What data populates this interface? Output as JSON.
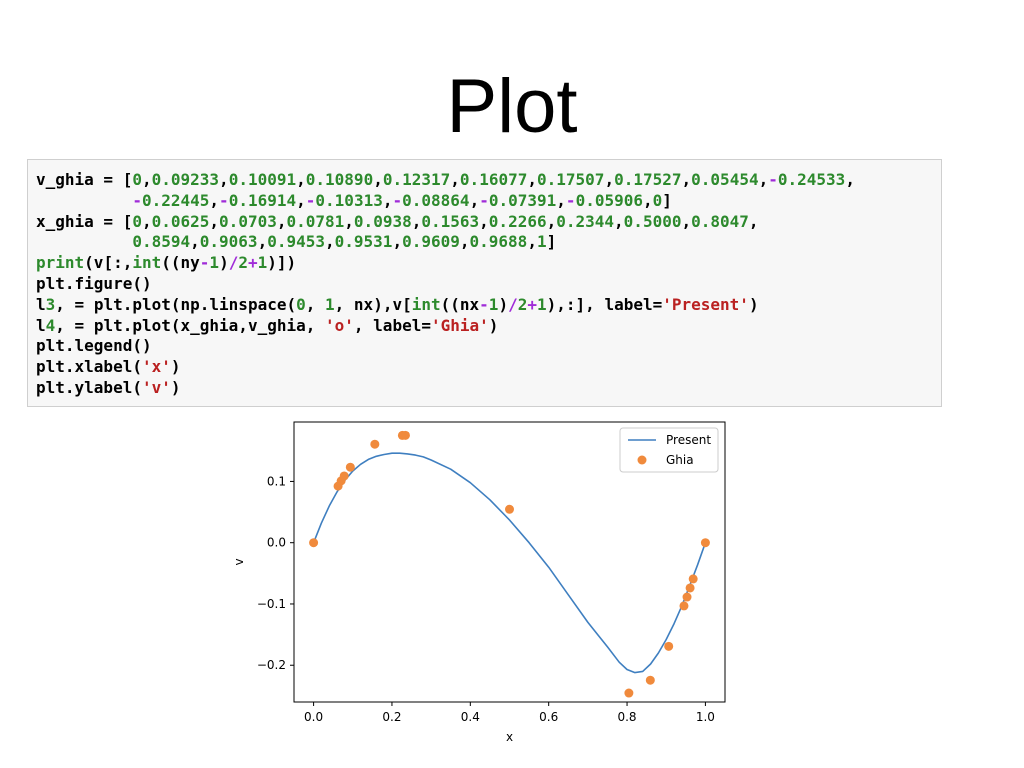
{
  "slide": {
    "title": "Plot"
  },
  "code": {
    "lines": [
      "v_ghia = [0,0.09233,0.10091,0.10890,0.12317,0.16077,0.17507,0.17527,0.05454,-0.24533,",
      "          -0.22445,-0.16914,-0.10313,-0.08864,-0.07391,-0.05906,0]",
      "x_ghia = [0,0.0625,0.0703,0.0781,0.0938,0.1563,0.2266,0.2344,0.5000,0.8047,",
      "          0.8594,0.9063,0.9453,0.9531,0.9609,0.9688,1]",
      "print(v[:,int((ny-1)/2+1)])",
      "plt.figure()",
      "l3, = plt.plot(np.linspace(0, 1, nx),v[int((nx-1)/2+1),:], label='Present')",
      "l4, = plt.plot(x_ghia,v_ghia, 'o', label='Ghia')",
      "plt.legend()",
      "plt.xlabel('x')",
      "plt.ylabel('v')"
    ]
  },
  "chart_data": {
    "type": "line",
    "xlabel": "x",
    "ylabel": "v",
    "xlim": [
      -0.05,
      1.05
    ],
    "ylim": [
      -0.26,
      0.197
    ],
    "xticks": [
      0.0,
      0.2,
      0.4,
      0.6,
      0.8,
      1.0
    ],
    "xtick_labels": [
      "0.0",
      "0.2",
      "0.4",
      "0.6",
      "0.8",
      "1.0"
    ],
    "yticks": [
      -0.2,
      -0.1,
      0.0,
      0.1
    ],
    "ytick_labels": [
      "−0.2",
      "−0.1",
      "0.0",
      "0.1"
    ],
    "grid": false,
    "legend_position": "top-right",
    "series": [
      {
        "name": "Present",
        "kind": "line",
        "color": "#3f7fc0",
        "x": [
          0.0,
          0.02,
          0.04,
          0.06,
          0.08,
          0.1,
          0.12,
          0.14,
          0.16,
          0.18,
          0.2,
          0.22,
          0.24,
          0.26,
          0.28,
          0.3,
          0.35,
          0.4,
          0.45,
          0.5,
          0.55,
          0.6,
          0.65,
          0.7,
          0.75,
          0.78,
          0.8,
          0.82,
          0.84,
          0.86,
          0.88,
          0.9,
          0.92,
          0.94,
          0.96,
          0.98,
          1.0
        ],
        "y": [
          0.0,
          0.032,
          0.06,
          0.083,
          0.102,
          0.117,
          0.128,
          0.136,
          0.141,
          0.144,
          0.146,
          0.146,
          0.145,
          0.143,
          0.14,
          0.135,
          0.12,
          0.098,
          0.07,
          0.037,
          0.0,
          -0.04,
          -0.085,
          -0.13,
          -0.17,
          -0.195,
          -0.207,
          -0.212,
          -0.21,
          -0.198,
          -0.18,
          -0.158,
          -0.132,
          -0.103,
          -0.07,
          -0.036,
          0.0
        ]
      },
      {
        "name": "Ghia",
        "kind": "markers",
        "color": "#f08a3c",
        "x": [
          0,
          0.0625,
          0.0703,
          0.0781,
          0.0938,
          0.1563,
          0.2266,
          0.2344,
          0.5,
          0.8047,
          0.8594,
          0.9063,
          0.9453,
          0.9531,
          0.9609,
          0.9688,
          1
        ],
        "y": [
          0,
          0.09233,
          0.10091,
          0.1089,
          0.12317,
          0.16077,
          0.17507,
          0.17527,
          0.05454,
          -0.24533,
          -0.22445,
          -0.16914,
          -0.10313,
          -0.08864,
          -0.07391,
          -0.05906,
          0
        ]
      }
    ]
  }
}
